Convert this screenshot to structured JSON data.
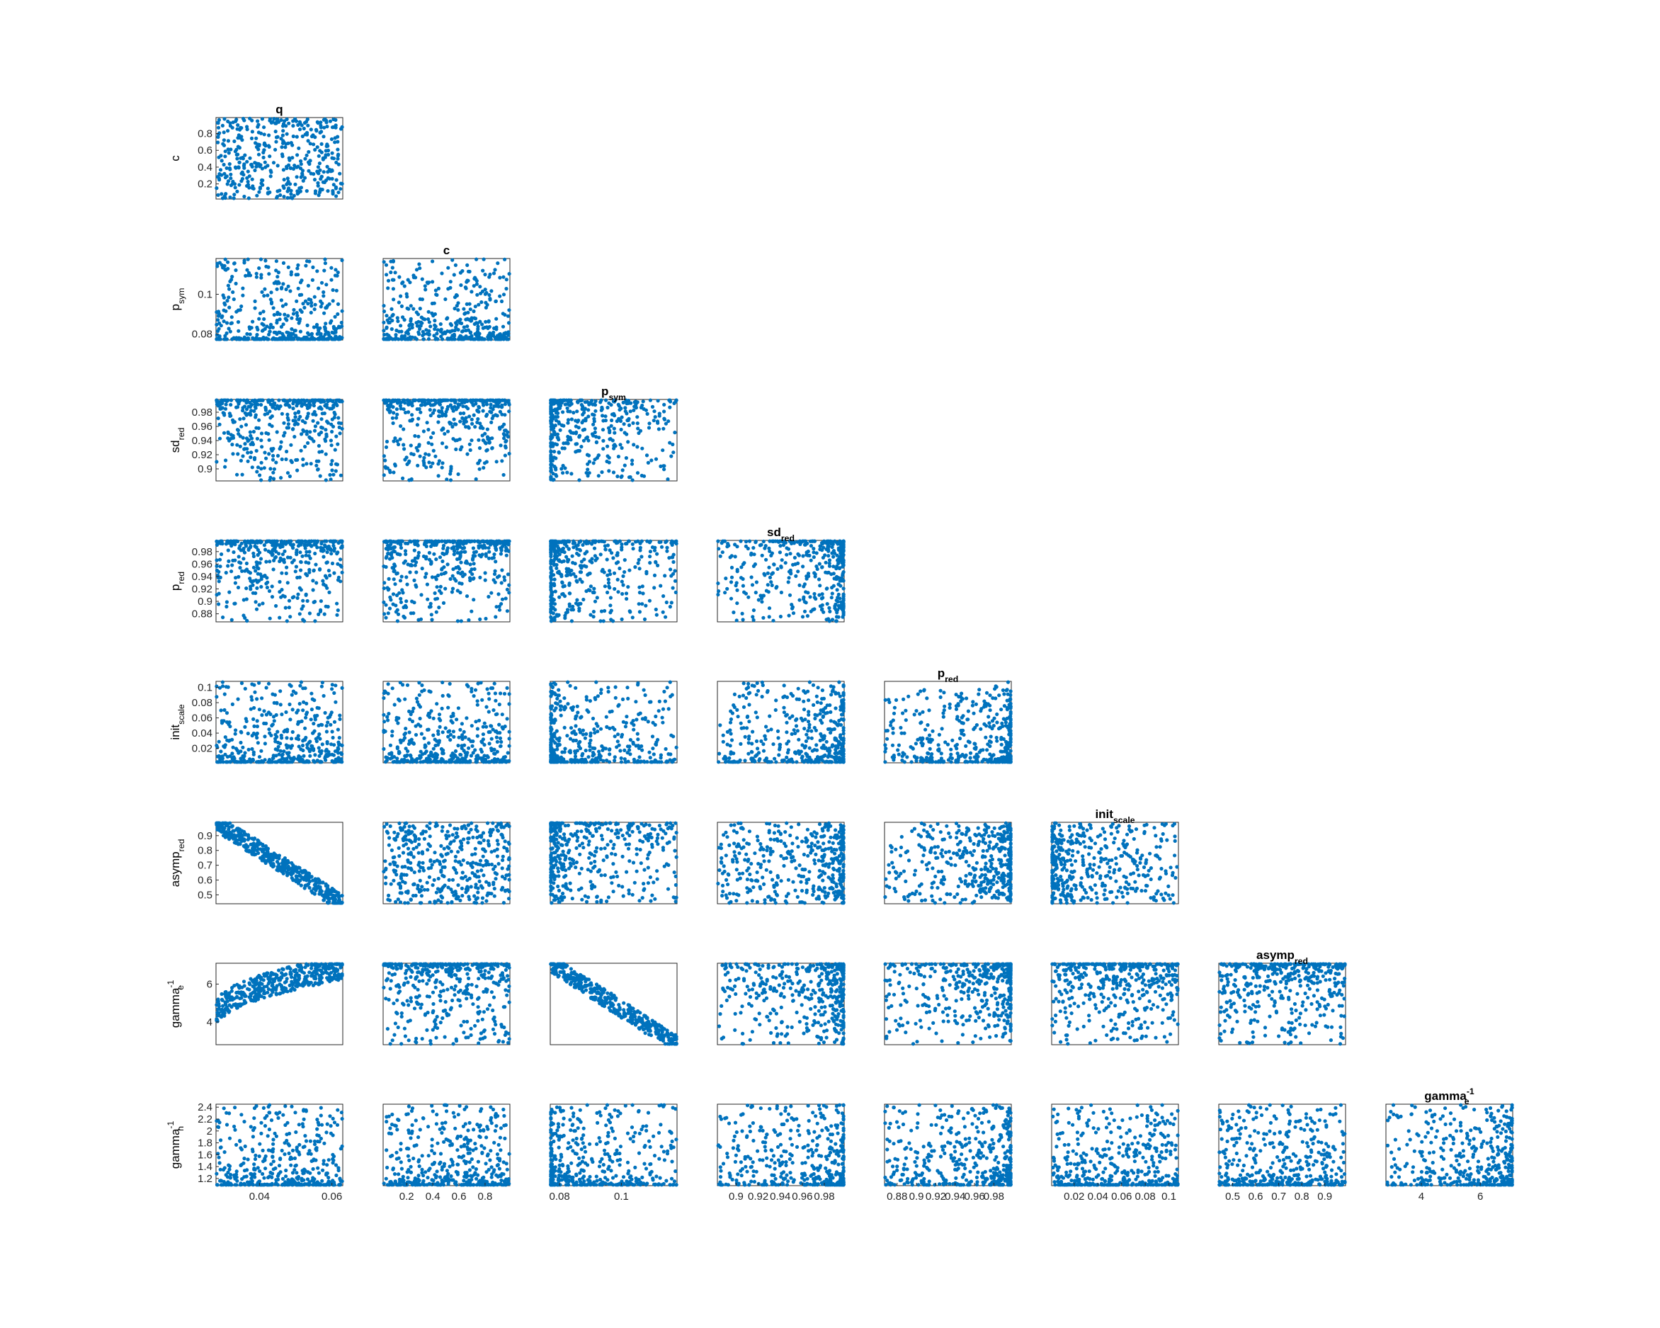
{
  "chart_data": {
    "type": "scatter",
    "layout": "lower-triangular pairwise scatter matrix",
    "marker_color": "#0072BD",
    "grid": false,
    "parameters": [
      {
        "key": "q",
        "label": "q",
        "sub": "",
        "sup": "",
        "range": [
          0.028,
          0.063
        ],
        "ticks": [
          0.04,
          0.06
        ],
        "tick_labels": [
          "0.04",
          "0.06"
        ]
      },
      {
        "key": "c",
        "label": "c",
        "sub": "",
        "sup": "",
        "range": [
          0.02,
          0.99
        ],
        "ticks": [
          0.2,
          0.4,
          0.6,
          0.8
        ],
        "tick_labels": [
          "0.2",
          "0.4",
          "0.6",
          "0.8"
        ]
      },
      {
        "key": "p_sym",
        "label": "p",
        "sub": "sym",
        "sup": "",
        "range": [
          0.077,
          0.118
        ],
        "ticks": [
          0.08,
          0.1
        ],
        "tick_labels": [
          "0.08",
          "0.1"
        ]
      },
      {
        "key": "sd_red",
        "label": "sd",
        "sub": "red",
        "sup": "",
        "range": [
          0.883,
          0.998
        ],
        "ticks": [
          0.9,
          0.92,
          0.94,
          0.96,
          0.98
        ],
        "tick_labels": [
          "0.9",
          "0.92",
          "0.94",
          "0.96",
          "0.98"
        ]
      },
      {
        "key": "p_red",
        "label": "p",
        "sub": "red",
        "sup": "",
        "range": [
          0.867,
          0.998
        ],
        "ticks": [
          0.88,
          0.9,
          0.92,
          0.94,
          0.96,
          0.98
        ],
        "tick_labels": [
          "0.88",
          "0.9",
          "0.92",
          "0.94",
          "0.96",
          "0.98"
        ]
      },
      {
        "key": "init_scale",
        "label": "init",
        "sub": "scale",
        "sup": "",
        "range": [
          0.001,
          0.108
        ],
        "ticks": [
          0.02,
          0.04,
          0.06,
          0.08,
          0.1
        ],
        "tick_labels": [
          "0.02",
          "0.04",
          "0.06",
          "0.08",
          "0.1"
        ]
      },
      {
        "key": "asymp_red",
        "label": "asymp",
        "sub": "red",
        "sup": "",
        "range": [
          0.44,
          0.99
        ],
        "ticks": [
          0.5,
          0.6,
          0.7,
          0.8,
          0.9
        ],
        "tick_labels": [
          "0.5",
          "0.6",
          "0.7",
          "0.8",
          "0.9"
        ]
      },
      {
        "key": "gamma_e_inv",
        "label": "gamma",
        "sub": "e",
        "sup": "-1",
        "range": [
          2.8,
          7.1
        ],
        "ticks": [
          4,
          6
        ],
        "tick_labels": [
          "4",
          "6"
        ]
      },
      {
        "key": "gamma_h_inv",
        "label": "gamma",
        "sub": "h",
        "sup": "-1",
        "range": [
          1.08,
          2.45
        ],
        "ticks": [
          1.2,
          1.4,
          1.6,
          1.8,
          2.0,
          2.2,
          2.4
        ],
        "tick_labels": [
          "1.2",
          "1.4",
          "1.6",
          "1.8",
          "2",
          "2.2",
          "2.4"
        ]
      }
    ],
    "x_axis_tick_sets": [
      {
        "param": "q",
        "ticks": [
          0.04,
          0.06
        ],
        "tick_labels": [
          "0.04",
          "0.06"
        ]
      },
      {
        "param": "c",
        "ticks": [
          0.2,
          0.4,
          0.6,
          0.8
        ],
        "tick_labels": [
          "0.2",
          "0.4",
          "0.6",
          "0.8"
        ]
      },
      {
        "param": "p_sym",
        "ticks": [
          0.08,
          0.1
        ],
        "tick_labels": [
          "0.08",
          "0.1"
        ]
      },
      {
        "param": "sd_red",
        "ticks": [
          0.9,
          0.94,
          0.98
        ],
        "tick_labels": [
          "0.9",
          "0.94",
          "0.98"
        ]
      },
      {
        "param": "p_red",
        "ticks": [
          0.9,
          0.94,
          0.98
        ],
        "tick_labels": [
          "0.9",
          "0.94",
          "0.98"
        ]
      },
      {
        "param": "init_scale",
        "ticks": [
          0.02,
          0.06,
          0.1
        ],
        "tick_labels": [
          "0.02",
          "0.06",
          "0.1"
        ]
      },
      {
        "param": "asymp_red",
        "ticks": [
          0.5,
          0.6,
          0.7,
          0.8,
          0.9
        ],
        "tick_labels": [
          "0.5",
          "0.6",
          "0.7",
          "0.8",
          "0.9"
        ]
      },
      {
        "param": "gamma_e_inv",
        "ticks": [
          4,
          6
        ],
        "tick_labels": [
          "4",
          "6"
        ]
      }
    ],
    "y_axis_tick_sets": [
      {
        "param": "c",
        "ticks": [
          0.2,
          0.4,
          0.6,
          0.8
        ],
        "tick_labels": [
          "0.2",
          "0.4",
          "0.6",
          "0.8"
        ]
      },
      {
        "param": "p_sym",
        "ticks": [
          0.08,
          0.1
        ],
        "tick_labels": [
          "0.08",
          "0.1"
        ]
      },
      {
        "param": "sd_red",
        "ticks": [
          0.9,
          0.92,
          0.94,
          0.96,
          0.98
        ],
        "tick_labels": [
          "0.9",
          "0.92",
          "0.94",
          "0.96",
          "0.98"
        ]
      },
      {
        "param": "p_red",
        "ticks": [
          0.88,
          0.9,
          0.92,
          0.94,
          0.96,
          0.98
        ],
        "tick_labels": [
          "0.88",
          "0.9",
          "0.92",
          "0.94",
          "0.96",
          "0.98"
        ]
      },
      {
        "param": "init_scale",
        "ticks": [
          0.02,
          0.04,
          0.06,
          0.08,
          0.1
        ],
        "tick_labels": [
          "0.02",
          "0.04",
          "0.06",
          "0.08",
          "0.1"
        ]
      },
      {
        "param": "asymp_red",
        "ticks": [
          0.5,
          0.6,
          0.7,
          0.8,
          0.9
        ],
        "tick_labels": [
          "0.5",
          "0.6",
          "0.7",
          "0.8",
          "0.9"
        ]
      },
      {
        "param": "gamma_e_inv",
        "ticks": [
          4,
          6
        ],
        "tick_labels": [
          "4",
          "6"
        ]
      },
      {
        "param": "gamma_h_inv",
        "ticks": [
          1.2,
          1.4,
          1.6,
          1.8,
          2.0,
          2.2,
          2.4
        ],
        "tick_labels": [
          "1.2",
          "1.4",
          "1.6",
          "1.8",
          "2",
          "2.2",
          "2.4"
        ]
      }
    ],
    "panels": [
      {
        "x": "q",
        "y": "c",
        "title": "q",
        "pattern": "uniform"
      },
      {
        "x": "q",
        "y": "p_sym",
        "title": "",
        "pattern": "low"
      },
      {
        "x": "c",
        "y": "p_sym",
        "title": "c",
        "pattern": "low"
      },
      {
        "x": "q",
        "y": "sd_red",
        "title": "",
        "pattern": "high"
      },
      {
        "x": "c",
        "y": "sd_red",
        "title": "",
        "pattern": "high"
      },
      {
        "x": "p_sym",
        "y": "sd_red",
        "title": "p_sym",
        "pattern": "corner_tl"
      },
      {
        "x": "q",
        "y": "p_red",
        "title": "",
        "pattern": "high"
      },
      {
        "x": "c",
        "y": "p_red",
        "title": "",
        "pattern": "high"
      },
      {
        "x": "p_sym",
        "y": "p_red",
        "title": "",
        "pattern": "corner_tl"
      },
      {
        "x": "sd_red",
        "y": "p_red",
        "title": "sd_red",
        "pattern": "corner_tr"
      },
      {
        "x": "q",
        "y": "init_scale",
        "title": "",
        "pattern": "low"
      },
      {
        "x": "c",
        "y": "init_scale",
        "title": "",
        "pattern": "low"
      },
      {
        "x": "p_sym",
        "y": "init_scale",
        "title": "",
        "pattern": "corner_bl"
      },
      {
        "x": "sd_red",
        "y": "init_scale",
        "title": "",
        "pattern": "corner_br"
      },
      {
        "x": "p_red",
        "y": "init_scale",
        "title": "p_red",
        "pattern": "corner_br"
      },
      {
        "x": "q",
        "y": "asymp_red",
        "title": "",
        "pattern": "diag_neg"
      },
      {
        "x": "c",
        "y": "asymp_red",
        "title": "",
        "pattern": "uniform"
      },
      {
        "x": "p_sym",
        "y": "asymp_red",
        "title": "",
        "pattern": "corner_tl"
      },
      {
        "x": "sd_red",
        "y": "asymp_red",
        "title": "",
        "pattern": "right"
      },
      {
        "x": "p_red",
        "y": "asymp_red",
        "title": "",
        "pattern": "right"
      },
      {
        "x": "init_scale",
        "y": "asymp_red",
        "title": "init_scale",
        "pattern": "left"
      },
      {
        "x": "q",
        "y": "gamma_e_inv",
        "title": "",
        "pattern": "diag_pos"
      },
      {
        "x": "c",
        "y": "gamma_e_inv",
        "title": "",
        "pattern": "high"
      },
      {
        "x": "p_sym",
        "y": "gamma_e_inv",
        "title": "",
        "pattern": "diag_neg"
      },
      {
        "x": "sd_red",
        "y": "gamma_e_inv",
        "title": "",
        "pattern": "corner_tr"
      },
      {
        "x": "p_red",
        "y": "gamma_e_inv",
        "title": "",
        "pattern": "corner_tr"
      },
      {
        "x": "init_scale",
        "y": "gamma_e_inv",
        "title": "",
        "pattern": "high"
      },
      {
        "x": "asymp_red",
        "y": "gamma_e_inv",
        "title": "asymp_red",
        "pattern": "high"
      },
      {
        "x": "q",
        "y": "gamma_h_inv",
        "title": "",
        "pattern": "low"
      },
      {
        "x": "c",
        "y": "gamma_h_inv",
        "title": "",
        "pattern": "low"
      },
      {
        "x": "p_sym",
        "y": "gamma_h_inv",
        "title": "",
        "pattern": "corner_bl"
      },
      {
        "x": "sd_red",
        "y": "gamma_h_inv",
        "title": "",
        "pattern": "corner_br"
      },
      {
        "x": "p_red",
        "y": "gamma_h_inv",
        "title": "",
        "pattern": "corner_br"
      },
      {
        "x": "init_scale",
        "y": "gamma_h_inv",
        "title": "",
        "pattern": "low"
      },
      {
        "x": "asymp_red",
        "y": "gamma_h_inv",
        "title": "",
        "pattern": "low"
      },
      {
        "x": "gamma_e_inv",
        "y": "gamma_h_inv",
        "title": "gamma_e_inv",
        "pattern": "corner_br"
      }
    ]
  }
}
